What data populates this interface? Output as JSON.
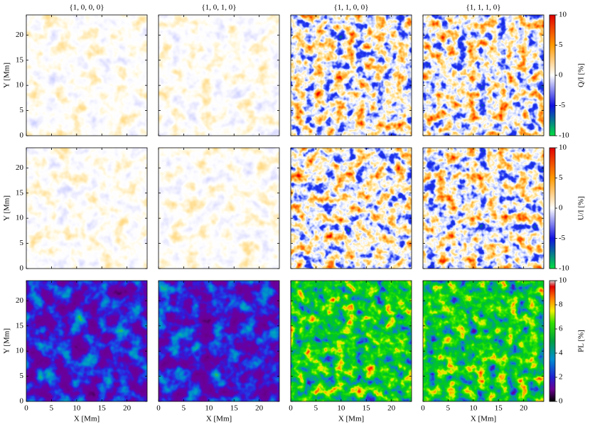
{
  "chart_data": {
    "type": "heatmap",
    "columns": [
      "{1, 0, 0, 0}",
      "{1, 0, 1, 0}",
      "{1, 1, 0, 0}",
      "{1, 1, 1, 0}"
    ],
    "rows": [
      {
        "label": "Q/I [%]",
        "lim": [
          -10,
          10
        ],
        "ticks": [
          -10,
          -5,
          0,
          5,
          10
        ]
      },
      {
        "label": "U/I [%]",
        "lim": [
          -10,
          10
        ],
        "ticks": [
          -10,
          -5,
          0,
          5,
          10
        ]
      },
      {
        "label": "PL [%]",
        "lim": [
          0,
          10
        ],
        "ticks": [
          0,
          2,
          4,
          6,
          8,
          10
        ]
      }
    ],
    "xlabel": "X [Mm]",
    "ylabel": "Y [Mm]",
    "xlim": [
      0,
      24
    ],
    "ylim": [
      0,
      24
    ],
    "xticks": [
      0,
      5,
      10,
      15,
      20
    ],
    "yticks": [
      0,
      5,
      10,
      15,
      20
    ]
  }
}
